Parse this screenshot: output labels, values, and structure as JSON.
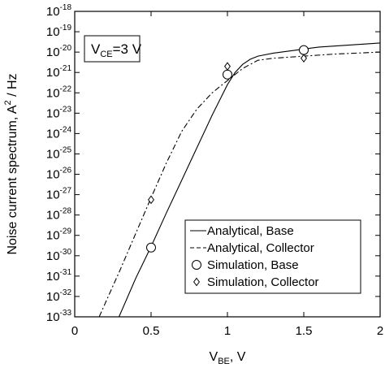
{
  "chart_data": {
    "type": "line",
    "xlabel": {
      "main": "V",
      "sub": "BE",
      "rest": ", V"
    },
    "ylabel": {
      "pre": "Noise current spectrum, A",
      "sup": "2",
      "post": " / Hz"
    },
    "x_ticks": [
      "0",
      "0.5",
      "1",
      "1.5",
      "2"
    ],
    "xlim": [
      0,
      2
    ],
    "y_scale": "log",
    "ylim_exponent": [
      -33,
      -18
    ],
    "y_tick_base": "10",
    "y_tick_exponents": [
      "-18",
      "-19",
      "-20",
      "-21",
      "-22",
      "-23",
      "-24",
      "-25",
      "-26",
      "-27",
      "-28",
      "-29",
      "-30",
      "-31",
      "-32",
      "-33"
    ],
    "annotation": {
      "main": "V",
      "sub": "CE",
      "rest": "=3 V"
    },
    "grid": false,
    "legend_position": "bottom-right",
    "series": [
      {
        "name": "Analytical, Base",
        "style": "solid",
        "x": [
          0.29,
          0.4,
          0.5,
          0.6,
          0.7,
          0.8,
          0.9,
          1.0,
          1.05,
          1.1,
          1.15,
          1.2,
          1.3,
          1.4,
          1.5,
          1.6,
          1.8,
          2.0
        ],
        "y_log10": [
          -33.0,
          -31.1,
          -29.55,
          -27.9,
          -26.3,
          -24.7,
          -23.1,
          -21.6,
          -21.0,
          -20.6,
          -20.35,
          -20.2,
          -20.05,
          -19.95,
          -19.85,
          -19.75,
          -19.65,
          -19.55
        ]
      },
      {
        "name": "Analytical, Collector",
        "style": "dashed",
        "x": [
          0.16,
          0.3,
          0.4,
          0.5,
          0.6,
          0.7,
          0.8,
          0.9,
          0.95,
          1.0,
          1.05,
          1.1,
          1.2,
          1.3,
          1.5,
          1.7,
          2.0
        ],
        "y_log10": [
          -33.0,
          -30.65,
          -28.9,
          -27.15,
          -25.45,
          -23.9,
          -22.8,
          -22.0,
          -21.7,
          -21.4,
          -21.1,
          -20.8,
          -20.4,
          -20.3,
          -20.2,
          -20.1,
          -20.0
        ]
      },
      {
        "name": "Simulation, Base",
        "marker": "circle",
        "x": [
          0.5,
          1.0,
          1.5
        ],
        "y_log10": [
          -29.6,
          -21.1,
          -19.9
        ]
      },
      {
        "name": "Simulation, Collector",
        "marker": "diamond",
        "x": [
          0.5,
          1.0,
          1.5
        ],
        "y_log10": [
          -27.25,
          -20.7,
          -20.3
        ]
      }
    ]
  }
}
